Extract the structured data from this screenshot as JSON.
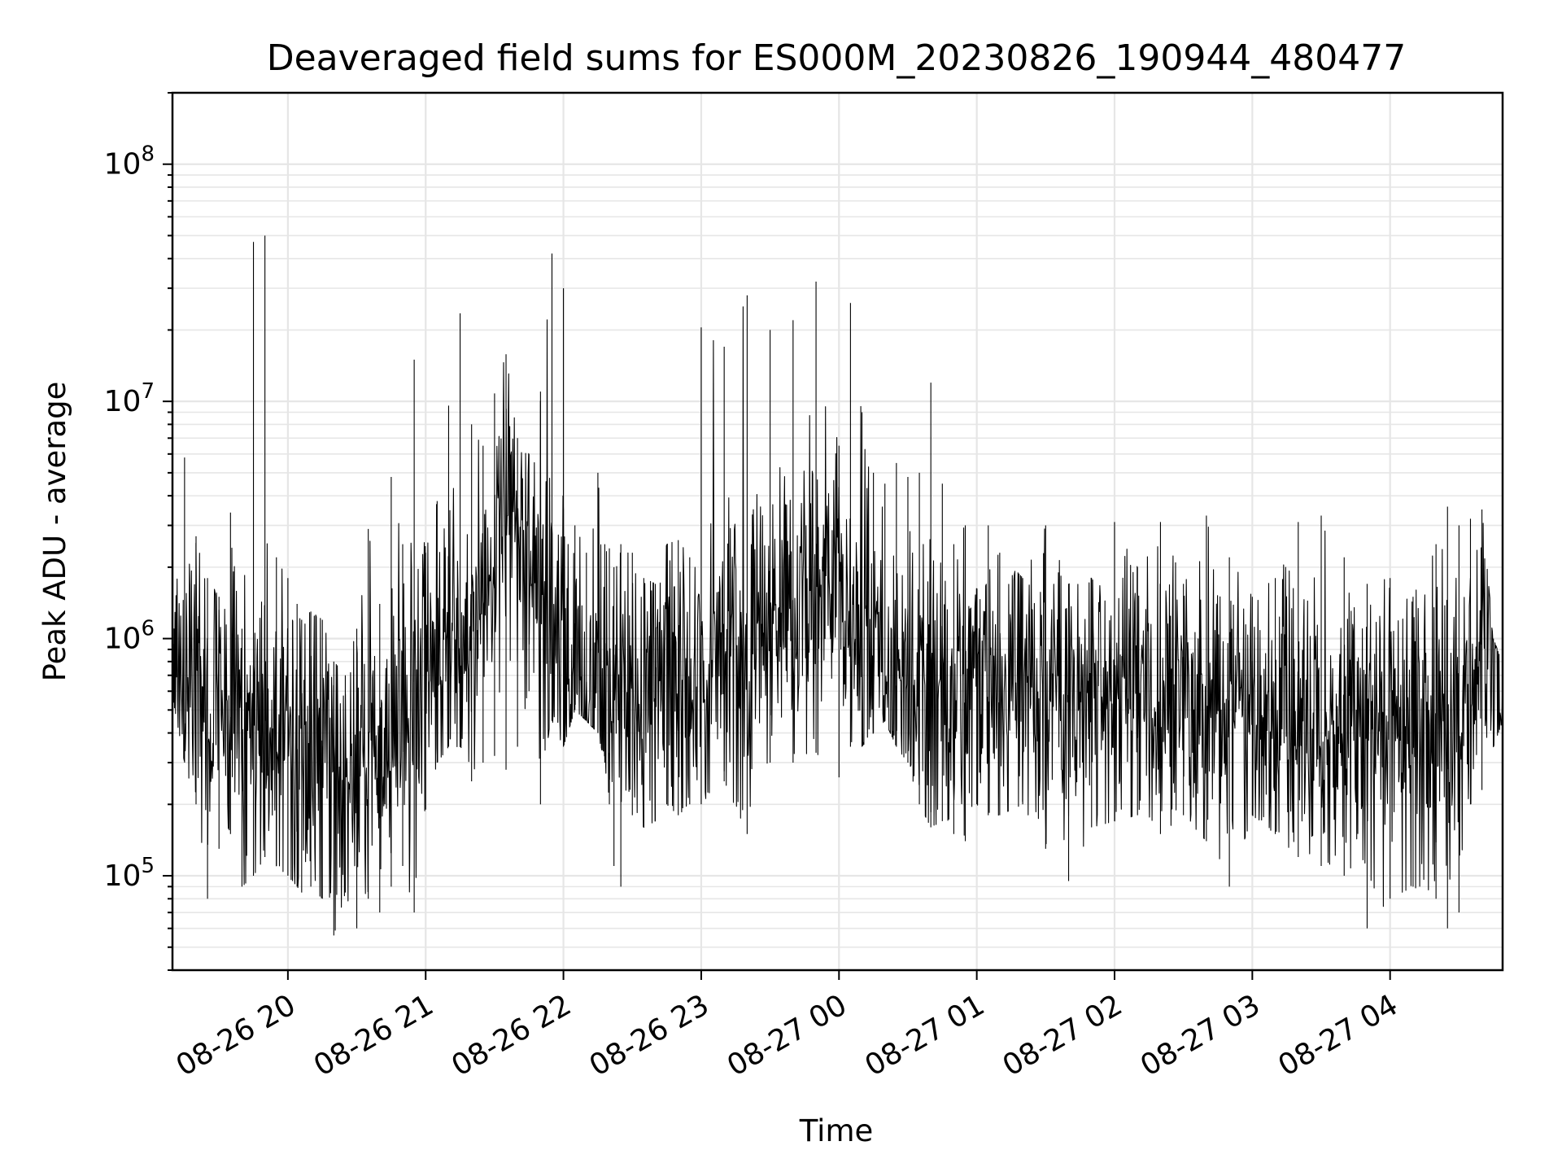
{
  "chart_data": {
    "type": "line",
    "title": "Deaveraged field sums for ES000M_20230826_190944_480477",
    "xlabel": "Time",
    "ylabel": "Peak ADU - average",
    "yscale": "log",
    "ylim": [
      40000,
      200000000
    ],
    "xlim": [
      "2023-08-26 19:09:44",
      "2023-08-27 04:49:00"
    ],
    "grid": true,
    "line_color": "#000000",
    "grid_color": "#e6e6e6",
    "x_ticks": [
      "2023-08-26 20:00",
      "2023-08-26 21:00",
      "2023-08-26 22:00",
      "2023-08-26 23:00",
      "2023-08-27 00:00",
      "2023-08-27 01:00",
      "2023-08-27 02:00",
      "2023-08-27 03:00",
      "2023-08-27 04:00"
    ],
    "x_tick_labels": [
      "08-26 20",
      "08-26 21",
      "08-26 22",
      "08-26 23",
      "08-27 00",
      "08-27 01",
      "08-27 02",
      "08-27 03",
      "08-27 04"
    ],
    "y_ticks": [
      100000,
      1000000,
      10000000,
      100000000
    ],
    "y_tick_labels": [
      {
        "base": "10",
        "exp": "5"
      },
      {
        "base": "10",
        "exp": "6"
      },
      {
        "base": "10",
        "exp": "7"
      },
      {
        "base": "10",
        "exp": "8"
      }
    ],
    "series": [
      {
        "x": [
          "2023-08-26 19:10",
          "2023-08-26 19:15",
          "2023-08-26 19:20",
          "2023-08-26 19:25",
          "2023-08-26 19:30",
          "2023-08-26 19:35",
          "2023-08-26 19:40",
          "2023-08-26 19:45",
          "2023-08-26 19:50",
          "2023-08-26 19:55",
          "2023-08-26 20:00",
          "2023-08-26 20:02",
          "2023-08-26 20:04",
          "2023-08-26 20:06",
          "2023-08-26 20:10",
          "2023-08-26 20:15",
          "2023-08-26 20:20",
          "2023-08-26 20:25",
          "2023-08-26 20:30",
          "2023-08-26 20:35",
          "2023-08-26 20:40",
          "2023-08-26 20:45",
          "2023-08-26 20:50",
          "2023-08-26 20:55",
          "2023-08-26 21:00",
          "2023-08-26 21:05",
          "2023-08-26 21:10",
          "2023-08-26 21:15",
          "2023-08-26 21:20",
          "2023-08-26 21:25",
          "2023-08-26 21:30",
          "2023-08-26 21:35",
          "2023-08-26 21:40",
          "2023-08-26 21:45",
          "2023-08-26 21:50",
          "2023-08-26 21:55",
          "2023-08-26 22:00",
          "2023-08-26 22:05",
          "2023-08-26 22:10",
          "2023-08-26 22:15",
          "2023-08-26 22:18",
          "2023-08-26 22:20",
          "2023-08-26 22:22",
          "2023-08-26 22:25",
          "2023-08-26 22:30",
          "2023-08-26 22:35",
          "2023-08-26 22:40",
          "2023-08-26 22:45",
          "2023-08-26 22:50",
          "2023-08-26 22:55",
          "2023-08-26 23:00",
          "2023-08-26 23:10",
          "2023-08-26 23:20",
          "2023-08-26 23:30",
          "2023-08-26 23:40",
          "2023-08-26 23:50",
          "2023-08-27 00:00",
          "2023-08-27 00:05",
          "2023-08-27 00:10",
          "2023-08-27 00:15",
          "2023-08-27 00:20",
          "2023-08-27 00:25",
          "2023-08-27 00:30",
          "2023-08-27 00:35",
          "2023-08-27 00:40",
          "2023-08-27 00:45",
          "2023-08-27 00:50",
          "2023-08-27 00:55",
          "2023-08-27 01:00",
          "2023-08-27 01:05",
          "2023-08-27 01:10",
          "2023-08-27 01:20",
          "2023-08-27 01:30",
          "2023-08-27 01:40",
          "2023-08-27 01:50",
          "2023-08-27 02:00",
          "2023-08-27 02:10",
          "2023-08-27 02:20",
          "2023-08-27 02:30",
          "2023-08-27 02:40",
          "2023-08-27 02:50",
          "2023-08-27 03:00",
          "2023-08-27 03:10",
          "2023-08-27 03:20",
          "2023-08-27 03:30",
          "2023-08-27 03:40",
          "2023-08-27 03:50",
          "2023-08-27 04:00",
          "2023-08-27 04:10",
          "2023-08-27 04:20",
          "2023-08-27 04:25",
          "2023-08-27 04:30",
          "2023-08-27 04:35",
          "2023-08-27 04:40",
          "2023-08-27 04:45",
          "2023-08-27 04:49"
        ],
        "low": [
          550000,
          300000,
          200000,
          80000,
          130000,
          150000,
          90000,
          100000,
          120000,
          110000,
          100000,
          95000,
          90000,
          85000,
          90000,
          80000,
          56000,
          85000,
          60000,
          80000,
          70000,
          90000,
          110000,
          70000,
          190000,
          300000,
          350000,
          350000,
          250000,
          300000,
          320000,
          280000,
          350000,
          600000,
          200000,
          450000,
          350000,
          500000,
          450000,
          400000,
          300000,
          200000,
          110000,
          90000,
          180000,
          160000,
          170000,
          200000,
          180000,
          200000,
          200000,
          250000,
          150000,
          300000,
          300000,
          330000,
          260000,
          350000,
          350000,
          400000,
          450000,
          350000,
          300000,
          200000,
          160000,
          170000,
          150000,
          140000,
          200000,
          180000,
          180000,
          200000,
          130000,
          95000,
          160000,
          170000,
          180000,
          150000,
          180000,
          140000,
          90000,
          180000,
          150000,
          120000,
          110000,
          100000,
          60000,
          80000,
          90000,
          80000,
          60000,
          70000,
          200000,
          230000,
          350000,
          450000
        ],
        "high": [
          950000,
          5800000,
          2700000,
          1800000,
          1500000,
          3400000,
          1100000,
          47000000,
          50000000,
          2200000,
          1800000,
          1200000,
          1400000,
          1200000,
          1300000,
          1200000,
          800000,
          700000,
          1100000,
          2900000,
          1400000,
          4800000,
          2500000,
          15000000,
          2300000,
          3800000,
          9600000,
          23500000,
          8000000,
          6500000,
          10800000,
          15800000,
          7000000,
          6000000,
          11000000,
          42000000,
          30000000,
          3000000,
          2300000,
          5000000,
          2500000,
          2400000,
          2000000,
          2500000,
          2300000,
          1800000,
          1700000,
          2500000,
          2600000,
          2200000,
          20500000,
          17000000,
          28000000,
          20000000,
          22000000,
          32000000,
          6500000,
          26000000,
          9000000,
          5000000,
          4500000,
          5500000,
          4800000,
          5000000,
          12000000,
          4500000,
          2500000,
          3000000,
          1600000,
          3000000,
          2300000,
          1800000,
          3000000,
          1700000,
          1800000,
          3100000,
          2000000,
          3100000,
          1700000,
          3300000,
          2200000,
          1500000,
          1800000,
          3100000,
          3300000,
          2200000,
          1700000,
          1800000,
          1500000,
          2500000,
          3600000,
          3000000,
          3200000,
          3500000,
          1000000,
          780000
        ],
        "typical": [
          800000,
          700000,
          600000,
          550000,
          500000,
          450000,
          400000,
          420000,
          400000,
          380000,
          350000,
          340000,
          320000,
          300000,
          330000,
          320000,
          280000,
          300000,
          310000,
          330000,
          360000,
          420000,
          500000,
          650000,
          800000,
          900000,
          1000000,
          1100000,
          1200000,
          1300000,
          2500000,
          4500000,
          5000000,
          3000000,
          1500000,
          1200000,
          800000,
          600000,
          550000,
          600000,
          650000,
          650000,
          600000,
          600000,
          650000,
          620000,
          600000,
          650000,
          700000,
          750000,
          800000,
          850000,
          1000000,
          1200000,
          1400000,
          1600000,
          1800000,
          1500000,
          1100000,
          900000,
          700000,
          650000,
          700000,
          700000,
          650000,
          650000,
          620000,
          600000,
          600000,
          580000,
          560000,
          560000,
          550000,
          550000,
          550000,
          560000,
          580000,
          580000,
          560000,
          560000,
          550000,
          530000,
          500000,
          480000,
          470000,
          460000,
          450000,
          430000,
          420000,
          420000,
          450000,
          500000,
          600000,
          800000,
          900000,
          600000
        ]
      }
    ]
  }
}
